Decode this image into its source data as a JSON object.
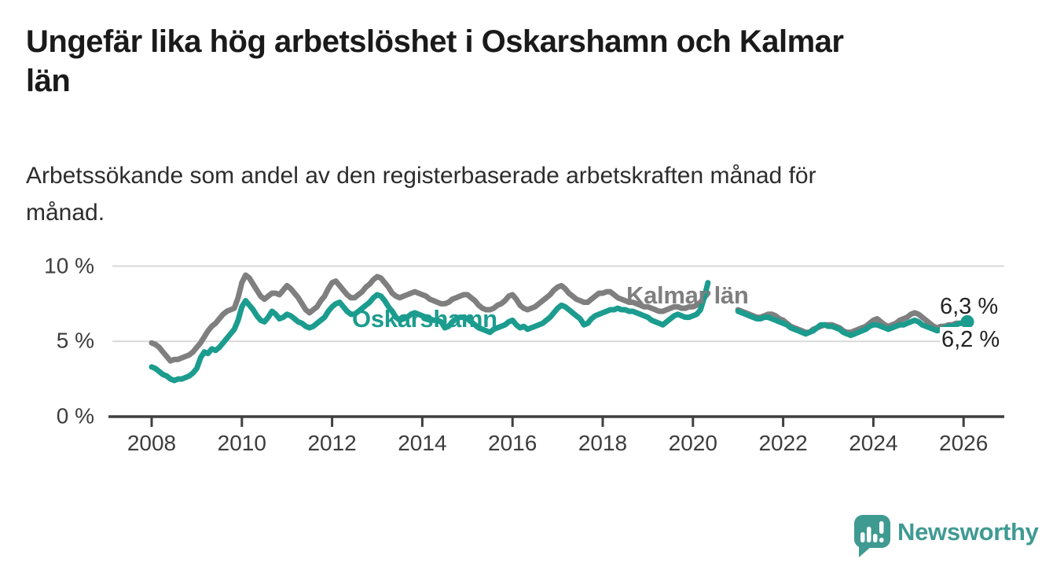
{
  "header": {
    "title_lines": [
      "Ungefär lika hög arbetslöshet i Oskarshamn och Kalmar",
      "län"
    ],
    "subtitle_lines": [
      "Arbetssökande som andel av den registerbaserade arbetskraften månad för",
      "månad."
    ]
  },
  "chart_data": {
    "type": "line",
    "title": "Ungefär lika hög arbetslöshet i Oskarshamn och Kalmar län",
    "subtitle": "Arbetssökande som andel av den registerbaserade arbetskraften månad för månad.",
    "unit": "%",
    "grid": "horizontal-only",
    "x_axis": {
      "start_year": 2008,
      "tick_step_years": 2,
      "tick_labels": [
        "2008",
        "2010",
        "2012",
        "2014",
        "2016",
        "2018",
        "2020",
        "2022",
        "2024",
        "2026"
      ]
    },
    "y_axis": {
      "tick_values": [
        10,
        5,
        0
      ],
      "tick_labels": [
        "10 %",
        "5 %",
        "0 %"
      ],
      "range": [
        0,
        10.4
      ]
    },
    "legend_position": "inline-on-lines",
    "series": [
      {
        "name": "Kalmar län",
        "color": "#7f7f7f",
        "end_label": "6,2 %",
        "end_value": 6.2,
        "end_dot": false,
        "points_per_year": 12,
        "segments": [
          {
            "start_year": 2008.0,
            "values": [
              4.9,
              4.8,
              4.6,
              4.3,
              4.0,
              3.7,
              3.8,
              3.8,
              3.9,
              4.0,
              4.1,
              4.3,
              4.6,
              4.9,
              5.3,
              5.7,
              6.0,
              6.2,
              6.5,
              6.8,
              7.0,
              7.1,
              7.2,
              7.9,
              8.9,
              9.4,
              9.2,
              8.8,
              8.4,
              8.0,
              7.8,
              8.0,
              8.2,
              8.2,
              8.1,
              8.4,
              8.7,
              8.5,
              8.2,
              7.9,
              7.5,
              7.1,
              6.9,
              7.1,
              7.3,
              7.7,
              8.0,
              8.5,
              8.9,
              9.0,
              8.7,
              8.4,
              8.1,
              7.9,
              7.9,
              8.1,
              8.3,
              8.6,
              8.8,
              9.1,
              9.3,
              9.2,
              8.9,
              8.6,
              8.2,
              8.0,
              7.9,
              8.0,
              8.1,
              8.2,
              8.3,
              8.2,
              8.1,
              8.0,
              7.8,
              7.7,
              7.6,
              7.5,
              7.5,
              7.6,
              7.8,
              7.9,
              8.0,
              8.1,
              8.1,
              7.9,
              7.7,
              7.4,
              7.2,
              7.1,
              7.1,
              7.2,
              7.4,
              7.5,
              7.7,
              8.0,
              8.1,
              7.8,
              7.4,
              7.2,
              7.1,
              7.2,
              7.3,
              7.5,
              7.7,
              7.9,
              8.1,
              8.4,
              8.6,
              8.7,
              8.5,
              8.2,
              8.0,
              7.8,
              7.7,
              7.6,
              7.6,
              7.8,
              8.0,
              8.2,
              8.2,
              8.3,
              8.3,
              8.1,
              7.9,
              7.8,
              7.7,
              7.6,
              7.6,
              7.5,
              7.4,
              7.3,
              7.3,
              7.2,
              7.1,
              7.0,
              7.0,
              7.1,
              7.2,
              7.3,
              7.3,
              7.2,
              7.2,
              7.3,
              7.3,
              7.4,
              7.6,
              7.9,
              8.2
            ]
          },
          {
            "start_year": 2021.0,
            "values": [
              7.1,
              7.0,
              6.9,
              6.8,
              6.7,
              6.6,
              6.6,
              6.7,
              6.8,
              6.8,
              6.7,
              6.5,
              6.4,
              6.2,
              6.0,
              5.9,
              5.8,
              5.7,
              5.6,
              5.6,
              5.8,
              5.9,
              6.0,
              6.1,
              6.1,
              6.1,
              6.0,
              5.9,
              5.7,
              5.6,
              5.6,
              5.7,
              5.8,
              5.9,
              6.0,
              6.2,
              6.4,
              6.5,
              6.3,
              6.1,
              6.0,
              6.1,
              6.2,
              6.4,
              6.5,
              6.6,
              6.8,
              6.9,
              6.8,
              6.6,
              6.4,
              6.2,
              6.0,
              5.9,
              6.0,
              6.0,
              6.1,
              6.1,
              6.2,
              6.2,
              6.2,
              6.2
            ]
          }
        ]
      },
      {
        "name": "Oskarshamn",
        "color": "#1b9c8e",
        "end_label": "6,3 %",
        "end_value": 6.3,
        "end_dot": true,
        "points_per_year": 12,
        "segments": [
          {
            "start_year": 2008.0,
            "values": [
              3.3,
              3.2,
              3.0,
              2.8,
              2.7,
              2.5,
              2.4,
              2.5,
              2.5,
              2.6,
              2.7,
              2.9,
              3.2,
              3.9,
              4.3,
              4.2,
              4.5,
              4.4,
              4.6,
              4.9,
              5.2,
              5.5,
              5.8,
              6.4,
              7.3,
              7.7,
              7.4,
              7.1,
              6.7,
              6.4,
              6.3,
              6.6,
              7.0,
              6.8,
              6.5,
              6.6,
              6.8,
              6.7,
              6.5,
              6.3,
              6.2,
              6.0,
              5.9,
              6.0,
              6.2,
              6.4,
              6.6,
              7.0,
              7.3,
              7.5,
              7.6,
              7.3,
              7.0,
              6.8,
              6.8,
              7.0,
              7.2,
              7.4,
              7.6,
              7.9,
              8.1,
              8.0,
              7.7,
              7.3,
              7.0,
              6.6,
              6.4,
              6.5,
              6.6,
              6.8,
              6.9,
              6.8,
              6.7,
              6.6,
              6.5,
              6.4,
              6.4,
              6.3,
              5.9,
              6.0,
              6.3,
              6.5,
              6.6,
              6.6,
              6.5,
              6.3,
              6.1,
              5.9,
              5.8,
              5.7,
              5.6,
              5.8,
              5.9,
              6.0,
              6.1,
              6.3,
              6.4,
              6.1,
              5.9,
              6.0,
              5.8,
              5.9,
              6.0,
              6.1,
              6.2,
              6.4,
              6.6,
              6.9,
              7.2,
              7.4,
              7.3,
              7.1,
              6.9,
              6.7,
              6.5,
              6.1,
              6.2,
              6.5,
              6.7,
              6.8,
              6.9,
              7.0,
              7.1,
              7.1,
              7.2,
              7.1,
              7.1,
              7.0,
              7.0,
              6.9,
              6.8,
              6.7,
              6.6,
              6.4,
              6.3,
              6.2,
              6.1,
              6.3,
              6.5,
              6.7,
              6.8,
              6.7,
              6.6,
              6.6,
              6.7,
              6.8,
              7.1,
              7.9,
              8.9
            ]
          },
          {
            "start_year": 2021.0,
            "values": [
              7.0,
              6.9,
              6.8,
              6.7,
              6.6,
              6.5,
              6.5,
              6.6,
              6.6,
              6.5,
              6.4,
              6.3,
              6.2,
              6.1,
              5.9,
              5.8,
              5.7,
              5.6,
              5.5,
              5.6,
              5.7,
              5.9,
              6.1,
              6.1,
              6.0,
              6.0,
              5.9,
              5.8,
              5.6,
              5.5,
              5.4,
              5.5,
              5.6,
              5.7,
              5.8,
              6.0,
              6.1,
              6.1,
              6.0,
              5.9,
              5.8,
              5.9,
              6.0,
              6.1,
              6.1,
              6.2,
              6.3,
              6.4,
              6.3,
              6.1,
              6.0,
              5.9,
              5.8,
              5.7,
              5.8,
              5.9,
              6.0,
              6.0,
              6.1,
              6.2,
              6.2,
              6.3
            ]
          }
        ]
      }
    ]
  },
  "footer": {
    "brand": "Newsworthy"
  }
}
